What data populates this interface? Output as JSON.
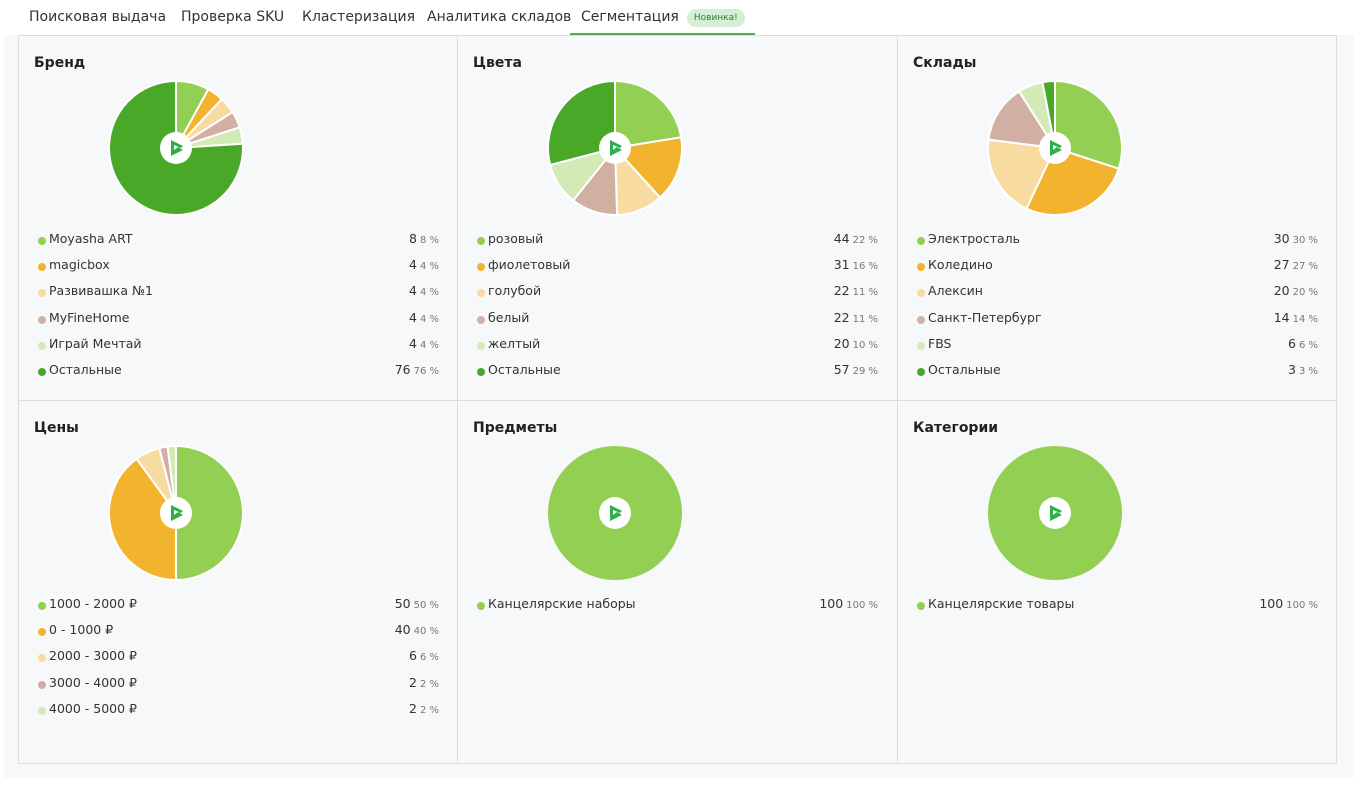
{
  "tabs": [
    {
      "label": "Поисковая выдача",
      "active": false
    },
    {
      "label": "Проверка SKU",
      "active": false
    },
    {
      "label": "Кластеризация",
      "active": false
    },
    {
      "label": "Аналитика складов",
      "active": false
    },
    {
      "label": "Сегментация",
      "active": true,
      "badge": "Новинка!"
    }
  ],
  "colors": [
    "#92cf52",
    "#f2b32e",
    "#f8dba0",
    "#d1b0a3",
    "#d3eab7",
    "#4aa829"
  ],
  "center_icon": "play-logo-icon",
  "chart_data": [
    {
      "type": "pie",
      "title": "Бренд",
      "items": [
        {
          "label": "Moyasha ART",
          "value": 8,
          "percent": "8 %"
        },
        {
          "label": "magicbox",
          "value": 4,
          "percent": "4 %"
        },
        {
          "label": "Развивашка №1",
          "value": 4,
          "percent": "4 %"
        },
        {
          "label": "MyFineHome",
          "value": 4,
          "percent": "4 %"
        },
        {
          "label": "Играй Мечтай",
          "value": 4,
          "percent": "4 %"
        },
        {
          "label": "Остальные",
          "value": 76,
          "percent": "76 %"
        }
      ]
    },
    {
      "type": "pie",
      "title": "Цвета",
      "items": [
        {
          "label": "розовый",
          "value": 44,
          "percent": "22 %"
        },
        {
          "label": "фиолетовый",
          "value": 31,
          "percent": "16 %"
        },
        {
          "label": "голубой",
          "value": 22,
          "percent": "11 %"
        },
        {
          "label": "белый",
          "value": 22,
          "percent": "11 %"
        },
        {
          "label": "желтый",
          "value": 20,
          "percent": "10 %"
        },
        {
          "label": "Остальные",
          "value": 57,
          "percent": "29 %"
        }
      ]
    },
    {
      "type": "pie",
      "title": "Склады",
      "items": [
        {
          "label": "Электросталь",
          "value": 30,
          "percent": "30 %"
        },
        {
          "label": "Коледино",
          "value": 27,
          "percent": "27 %"
        },
        {
          "label": "Алексин",
          "value": 20,
          "percent": "20 %"
        },
        {
          "label": "Санкт-Петербург",
          "value": 14,
          "percent": "14 %"
        },
        {
          "label": "FBS",
          "value": 6,
          "percent": "6 %"
        },
        {
          "label": "Остальные",
          "value": 3,
          "percent": "3 %"
        }
      ]
    },
    {
      "type": "pie",
      "title": "Цены",
      "items": [
        {
          "label": "1000 - 2000 ₽",
          "value": 50,
          "percent": "50 %"
        },
        {
          "label": "0 - 1000 ₽",
          "value": 40,
          "percent": "40 %"
        },
        {
          "label": "2000 - 3000 ₽",
          "value": 6,
          "percent": "6 %"
        },
        {
          "label": "3000 - 4000 ₽",
          "value": 2,
          "percent": "2 %"
        },
        {
          "label": "4000 - 5000 ₽",
          "value": 2,
          "percent": "2 %"
        }
      ]
    },
    {
      "type": "pie",
      "title": "Предметы",
      "items": [
        {
          "label": "Канцелярские наборы",
          "value": 100,
          "percent": "100 %"
        }
      ]
    },
    {
      "type": "pie",
      "title": "Категории",
      "items": [
        {
          "label": "Канцелярские товары",
          "value": 100,
          "percent": "100 %"
        }
      ]
    }
  ]
}
